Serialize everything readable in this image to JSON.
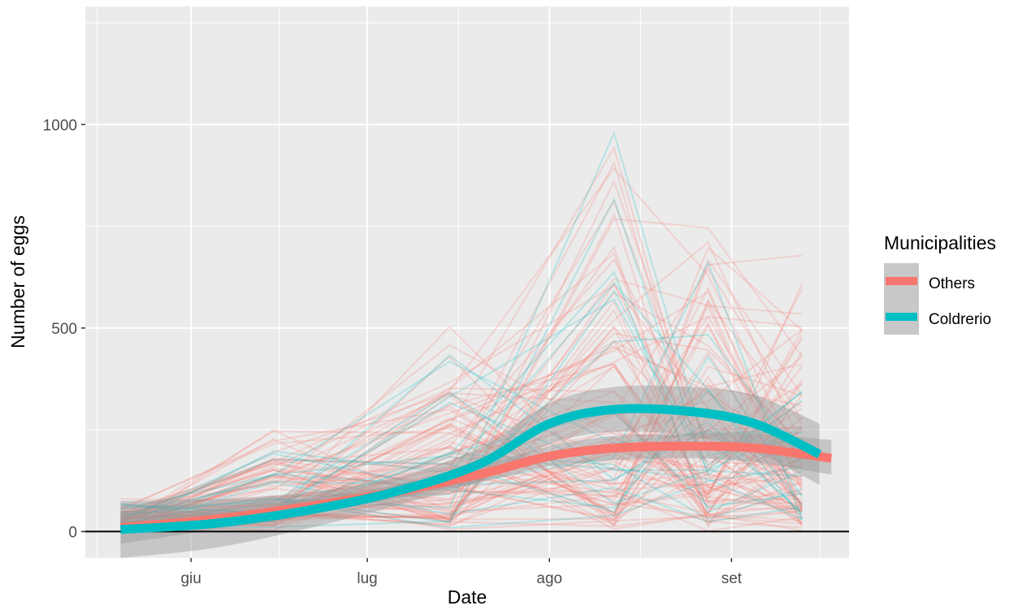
{
  "chart_data": {
    "type": "line",
    "title": "",
    "xlabel": "Date",
    "ylabel": "Number of eggs",
    "x_ticks": [
      "giu",
      "lug",
      "ago",
      "set"
    ],
    "x_tick_dates": [
      "2019-06-01",
      "2019-07-01",
      "2019-08-01",
      "2019-09-01"
    ],
    "xlim": [
      "2019-05-14",
      "2019-09-21"
    ],
    "y_ticks": [
      0,
      500,
      1000
    ],
    "ylim": [
      -65,
      1290
    ],
    "grid": true,
    "zero_line": true,
    "legend": {
      "title": "Municipalities",
      "position": "right",
      "entries": [
        "Others",
        "Coldrerio"
      ]
    },
    "colors": {
      "Others": "#F8766D",
      "Coldrerio": "#00BFC4",
      "panel_bg": "#EBEBEB",
      "band": "#999999"
    },
    "series": [
      {
        "name": "Others",
        "x": [
          "2019-05-20",
          "2019-06-05",
          "2019-06-20",
          "2019-07-05",
          "2019-07-20",
          "2019-08-01",
          "2019-08-12",
          "2019-08-25",
          "2019-09-05",
          "2019-09-18"
        ],
        "y": [
          10,
          30,
          60,
          95,
          140,
          185,
          205,
          210,
          205,
          180
        ],
        "band_low": [
          -30,
          5,
          40,
          78,
          120,
          160,
          175,
          180,
          170,
          140
        ],
        "band_high": [
          50,
          55,
          80,
          112,
          160,
          210,
          235,
          240,
          240,
          225
        ]
      },
      {
        "name": "Coldrerio",
        "x": [
          "2019-05-20",
          "2019-06-05",
          "2019-06-20",
          "2019-07-05",
          "2019-07-20",
          "2019-08-01",
          "2019-08-12",
          "2019-08-25",
          "2019-09-05",
          "2019-09-16"
        ],
        "y": [
          5,
          20,
          50,
          95,
          165,
          265,
          300,
          295,
          265,
          190
        ],
        "band_low": [
          -65,
          -40,
          5,
          60,
          125,
          215,
          245,
          235,
          195,
          115
        ],
        "band_high": [
          75,
          80,
          95,
          130,
          205,
          315,
          355,
          355,
          335,
          265
        ]
      }
    ]
  }
}
